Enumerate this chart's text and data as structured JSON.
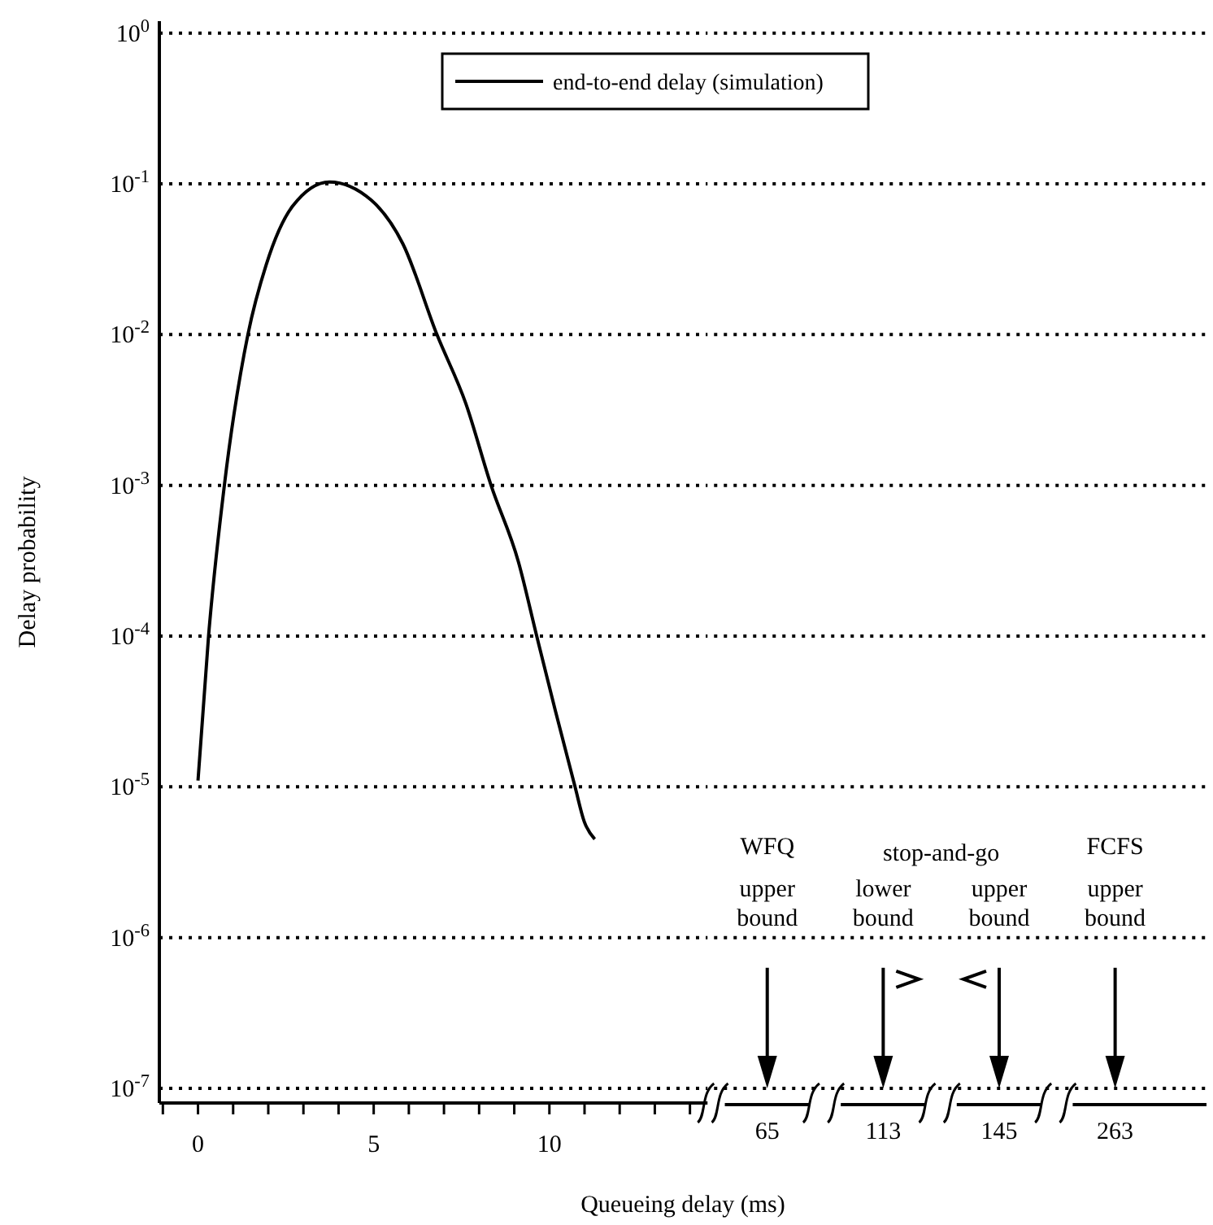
{
  "chart_data": {
    "type": "line",
    "xlabel": "Queueing delay (ms)",
    "ylabel": "Delay probability",
    "x": [
      0,
      0.3,
      0.75,
      1.42,
      1.94,
      2.69,
      3.74,
      4.93,
      5.83,
      6.8,
      7.62,
      8.34,
      9.12,
      9.64,
      10.17,
      10.73,
      10.99,
      11.29
    ],
    "series": [
      {
        "name": "end-to-end delay (simulation)",
        "color": "#000000",
        "values": [
          1.1e-05,
          0.0001,
          0.001,
          0.01,
          0.029,
          0.071,
          0.103,
          0.078,
          0.04,
          0.01,
          0.0035,
          0.001,
          0.00031,
          0.0001,
          3.2e-05,
          1e-05,
          5.9e-06,
          4.5e-06
        ]
      }
    ],
    "log": "y",
    "grid": "y",
    "legend": "top right",
    "xlim": [
      -1.1,
      14.5
    ],
    "xticks": [
      {
        "value": -1,
        "label": null
      },
      0,
      {
        "value": 1,
        "label": null
      },
      {
        "value": 2,
        "label": null
      },
      {
        "value": 3,
        "label": null
      },
      {
        "value": 4,
        "label": null
      },
      5,
      {
        "value": 6,
        "label": null
      },
      {
        "value": 7,
        "label": null
      },
      {
        "value": 8,
        "label": null
      },
      {
        "value": 9,
        "label": null
      },
      10,
      {
        "value": 11,
        "label": null
      },
      {
        "value": 12,
        "label": null
      },
      {
        "value": 13,
        "label": null
      },
      {
        "value": 14,
        "label": null
      }
    ],
    "ylim": [
      8e-08,
      1.2
    ],
    "yticks": [
      {
        "value": 1,
        "label": "10$^{0}$"
      },
      {
        "value": 0.1,
        "label": "10$^{-1}$"
      },
      {
        "value": 0.01,
        "label": "10$^{-2}$"
      },
      {
        "value": 0.001,
        "label": "10$^{-3}$"
      },
      {
        "value": 0.0001,
        "label": "10$^{-4}$"
      },
      {
        "value": 1e-05,
        "label": "10$^{-5}$"
      },
      {
        "value": 1e-06,
        "label": "10$^{-6}$"
      },
      {
        "value": 1e-07,
        "label": "10$^{-7}$"
      }
    ],
    "annotations": [
      "WFQ upper bound",
      "65",
      "stop-and-go",
      "lower bound",
      "113",
      "upper bound",
      "145",
      "FCFS upper bound",
      "263"
    ]
  }
}
